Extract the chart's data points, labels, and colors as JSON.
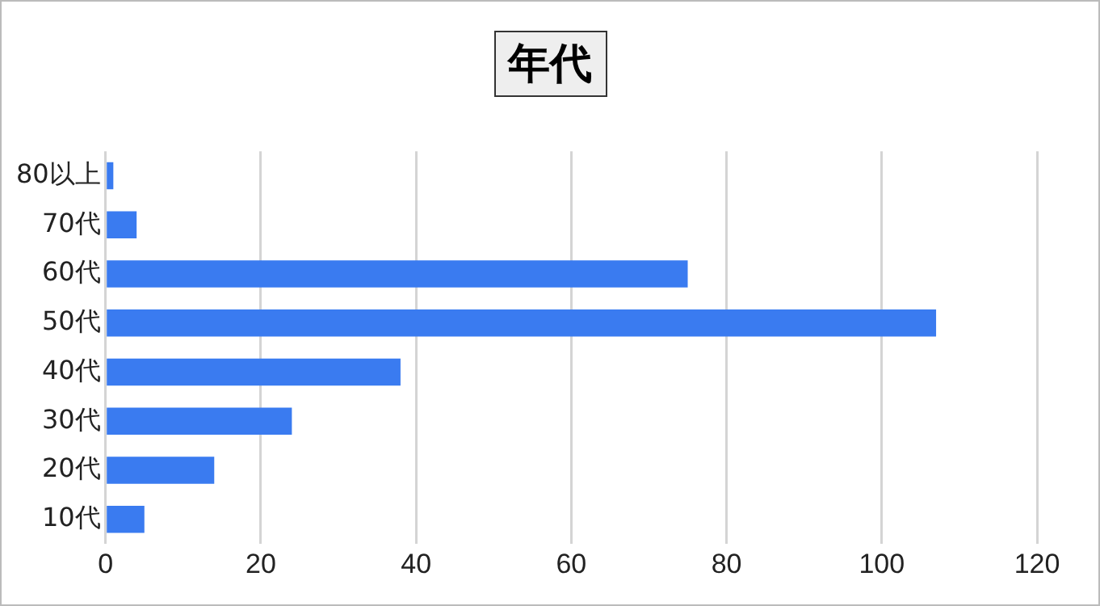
{
  "chart_data": {
    "type": "bar",
    "orientation": "horizontal",
    "title": "年代",
    "categories": [
      "80以上",
      "70代",
      "60代",
      "50代",
      "40代",
      "30代",
      "20代",
      "10代"
    ],
    "values": [
      1,
      4,
      75,
      107,
      38,
      24,
      14,
      5
    ],
    "color": "#3a7bf0",
    "xlim": [
      0,
      120
    ],
    "xticks": [
      0,
      20,
      40,
      60,
      80,
      100,
      120
    ],
    "grid": "x",
    "legend": false
  }
}
